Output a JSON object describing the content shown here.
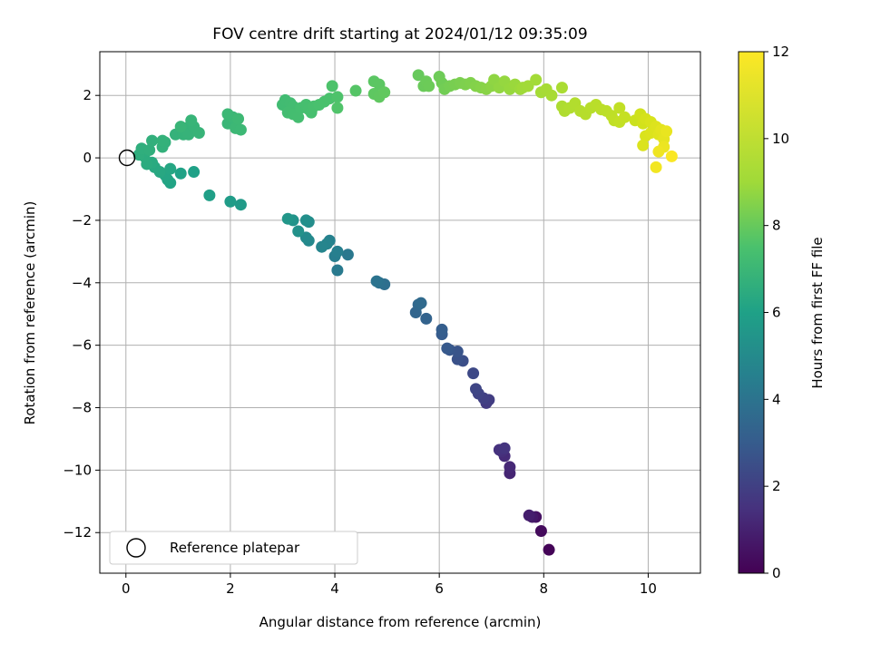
{
  "chart_data": {
    "type": "scatter",
    "title": "FOV centre drift starting at 2024/01/12 09:35:09",
    "xlabel": "Angular distance from reference (arcmin)",
    "ylabel": "Rotation from reference (arcmin)",
    "xlim": [
      -0.5,
      11.0
    ],
    "ylim": [
      -13.3,
      3.4
    ],
    "xticks": [
      "0",
      "2",
      "4",
      "6",
      "8",
      "10"
    ],
    "yticks": [
      "2",
      "0",
      "−2",
      "−4",
      "−6",
      "−8",
      "−10",
      "−12"
    ],
    "grid": true,
    "colormap": "viridis",
    "colorbar": {
      "label": "Hours from first FF file",
      "range": [
        0,
        12
      ],
      "ticks": [
        "0",
        "2",
        "4",
        "6",
        "8",
        "10",
        "12"
      ]
    },
    "legend": {
      "position": "lower-left",
      "label": "Reference platepar",
      "marker": {
        "x": 0,
        "y": 0
      }
    },
    "points": [
      [
        8.1,
        -12.55,
        0.1
      ],
      [
        7.95,
        -11.95,
        0.3
      ],
      [
        7.85,
        -11.5,
        0.5
      ],
      [
        7.78,
        -11.5,
        0.7
      ],
      [
        7.72,
        -11.45,
        0.9
      ],
      [
        7.35,
        -10.1,
        1.1
      ],
      [
        7.35,
        -9.9,
        1.2
      ],
      [
        7.25,
        -9.55,
        1.3
      ],
      [
        7.2,
        -9.4,
        1.4
      ],
      [
        7.15,
        -9.35,
        1.5
      ],
      [
        7.25,
        -9.3,
        1.6
      ],
      [
        6.9,
        -7.85,
        1.8
      ],
      [
        6.95,
        -7.75,
        1.9
      ],
      [
        6.85,
        -7.7,
        2.0
      ],
      [
        6.75,
        -7.55,
        2.1
      ],
      [
        6.7,
        -7.4,
        2.2
      ],
      [
        6.65,
        -6.9,
        2.3
      ],
      [
        6.45,
        -6.5,
        2.5
      ],
      [
        6.35,
        -6.45,
        2.6
      ],
      [
        6.35,
        -6.2,
        2.7
      ],
      [
        6.2,
        -6.15,
        2.8
      ],
      [
        6.15,
        -6.1,
        2.9
      ],
      [
        6.05,
        -5.65,
        3.0
      ],
      [
        6.05,
        -5.5,
        3.1
      ],
      [
        5.75,
        -5.15,
        3.3
      ],
      [
        5.55,
        -4.95,
        3.4
      ],
      [
        5.6,
        -4.7,
        3.5
      ],
      [
        5.65,
        -4.65,
        3.6
      ],
      [
        4.95,
        -4.05,
        3.8
      ],
      [
        4.85,
        -4.0,
        3.9
      ],
      [
        4.8,
        -3.95,
        4.0
      ],
      [
        4.25,
        -3.1,
        4.2
      ],
      [
        4.05,
        -3.6,
        4.3
      ],
      [
        4.0,
        -3.15,
        4.4
      ],
      [
        4.05,
        -3.0,
        4.5
      ],
      [
        3.9,
        -2.65,
        4.6
      ],
      [
        3.85,
        -2.75,
        4.7
      ],
      [
        3.75,
        -2.85,
        4.75
      ],
      [
        3.5,
        -2.65,
        4.9
      ],
      [
        3.45,
        -2.55,
        5.0
      ],
      [
        3.5,
        -2.05,
        5.1
      ],
      [
        3.45,
        -2.0,
        5.2
      ],
      [
        3.3,
        -2.35,
        5.3
      ],
      [
        3.2,
        -2.0,
        5.4
      ],
      [
        3.1,
        -1.95,
        5.5
      ],
      [
        2.2,
        -1.5,
        5.7
      ],
      [
        2.0,
        -1.4,
        5.8
      ],
      [
        1.6,
        -1.2,
        5.9
      ],
      [
        1.3,
        -0.45,
        6.0
      ],
      [
        1.05,
        -0.5,
        6.05
      ],
      [
        0.85,
        -0.8,
        6.1
      ],
      [
        0.8,
        -0.7,
        6.15
      ],
      [
        0.75,
        -0.55,
        6.2
      ],
      [
        0.85,
        -0.35,
        6.25
      ],
      [
        0.65,
        -0.45,
        6.3
      ],
      [
        0.55,
        -0.3,
        6.35
      ],
      [
        0.5,
        -0.15,
        6.4
      ],
      [
        0.4,
        -0.2,
        6.45
      ],
      [
        0.35,
        0.05,
        6.5
      ],
      [
        0.25,
        0.1,
        6.55
      ],
      [
        0.3,
        0.3,
        6.6
      ],
      [
        0.45,
        0.25,
        6.62
      ],
      [
        0.5,
        0.55,
        6.65
      ],
      [
        0.7,
        0.35,
        6.7
      ],
      [
        0.75,
        0.5,
        6.72
      ],
      [
        0.7,
        0.55,
        6.74
      ],
      [
        0.95,
        0.75,
        6.76
      ],
      [
        1.1,
        0.75,
        6.78
      ],
      [
        1.15,
        0.95,
        6.8
      ],
      [
        1.2,
        0.75,
        6.82
      ],
      [
        1.3,
        1.0,
        6.84
      ],
      [
        1.4,
        0.8,
        6.86
      ],
      [
        1.25,
        1.2,
        6.88
      ],
      [
        1.05,
        1.0,
        6.9
      ],
      [
        1.95,
        1.1,
        6.95
      ],
      [
        2.05,
        1.3,
        7.0
      ],
      [
        1.95,
        1.4,
        7.02
      ],
      [
        2.1,
        0.95,
        7.04
      ],
      [
        2.2,
        0.9,
        7.06
      ],
      [
        2.15,
        1.25,
        7.08
      ],
      [
        3.0,
        1.7,
        7.2
      ],
      [
        3.05,
        1.85,
        7.22
      ],
      [
        3.15,
        1.75,
        7.24
      ],
      [
        3.2,
        1.65,
        7.26
      ],
      [
        3.1,
        1.45,
        7.28
      ],
      [
        3.2,
        1.4,
        7.3
      ],
      [
        3.3,
        1.3,
        7.32
      ],
      [
        3.35,
        1.6,
        7.34
      ],
      [
        3.45,
        1.7,
        7.36
      ],
      [
        3.5,
        1.55,
        7.38
      ],
      [
        3.55,
        1.45,
        7.4
      ],
      [
        3.6,
        1.65,
        7.42
      ],
      [
        3.7,
        1.7,
        7.45
      ],
      [
        3.8,
        1.8,
        7.48
      ],
      [
        3.9,
        1.9,
        7.5
      ],
      [
        3.95,
        2.3,
        7.55
      ],
      [
        4.05,
        1.95,
        7.57
      ],
      [
        4.05,
        1.6,
        7.6
      ],
      [
        4.4,
        2.15,
        7.7
      ],
      [
        4.75,
        2.45,
        7.8
      ],
      [
        4.85,
        2.35,
        7.82
      ],
      [
        4.75,
        2.05,
        7.85
      ],
      [
        4.85,
        1.95,
        7.88
      ],
      [
        4.95,
        2.1,
        7.9
      ],
      [
        5.6,
        2.65,
        8.0
      ],
      [
        5.7,
        2.3,
        8.05
      ],
      [
        5.75,
        2.45,
        8.08
      ],
      [
        5.8,
        2.3,
        8.1
      ],
      [
        6.0,
        2.6,
        8.12
      ],
      [
        6.05,
        2.4,
        8.15
      ],
      [
        6.1,
        2.2,
        8.2
      ],
      [
        6.2,
        2.3,
        8.25
      ],
      [
        6.3,
        2.35,
        8.3
      ],
      [
        6.4,
        2.4,
        8.35
      ],
      [
        6.5,
        2.35,
        8.4
      ],
      [
        6.6,
        2.4,
        8.45
      ],
      [
        6.7,
        2.3,
        8.5
      ],
      [
        6.8,
        2.25,
        8.55
      ],
      [
        6.9,
        2.2,
        8.6
      ],
      [
        7.0,
        2.3,
        8.65
      ],
      [
        7.05,
        2.5,
        8.7
      ],
      [
        7.15,
        2.25,
        8.75
      ],
      [
        7.25,
        2.45,
        8.8
      ],
      [
        7.35,
        2.2,
        8.85
      ],
      [
        7.45,
        2.35,
        8.9
      ],
      [
        7.55,
        2.2,
        8.95
      ],
      [
        7.6,
        2.25,
        9.0
      ],
      [
        7.7,
        2.3,
        9.05
      ],
      [
        7.85,
        2.5,
        9.1
      ],
      [
        7.95,
        2.1,
        9.15
      ],
      [
        8.05,
        2.2,
        9.2
      ],
      [
        8.15,
        2.0,
        9.25
      ],
      [
        8.35,
        2.25,
        9.3
      ],
      [
        8.35,
        1.65,
        9.4
      ],
      [
        8.4,
        1.5,
        9.45
      ],
      [
        8.5,
        1.6,
        9.5
      ],
      [
        8.6,
        1.75,
        9.55
      ],
      [
        8.7,
        1.5,
        9.6
      ],
      [
        8.8,
        1.4,
        9.65
      ],
      [
        8.9,
        1.6,
        9.7
      ],
      [
        9.0,
        1.7,
        9.75
      ],
      [
        9.1,
        1.55,
        9.8
      ],
      [
        9.2,
        1.5,
        9.85
      ],
      [
        9.3,
        1.35,
        9.9
      ],
      [
        9.35,
        1.2,
        9.95
      ],
      [
        9.45,
        1.6,
        10.0
      ],
      [
        9.45,
        1.15,
        10.05
      ],
      [
        9.55,
        1.3,
        10.1
      ],
      [
        9.75,
        1.2,
        10.3
      ],
      [
        9.85,
        1.4,
        10.4
      ],
      [
        9.9,
        1.1,
        10.5
      ],
      [
        9.95,
        1.25,
        10.6
      ],
      [
        10.05,
        1.15,
        10.7
      ],
      [
        9.95,
        0.7,
        10.75
      ],
      [
        9.9,
        0.4,
        10.8
      ],
      [
        10.05,
        0.8,
        10.85
      ],
      [
        10.15,
        1.0,
        10.9
      ],
      [
        10.2,
        0.75,
        11.0
      ],
      [
        10.25,
        0.9,
        11.1
      ],
      [
        10.3,
        0.6,
        11.2
      ],
      [
        10.35,
        0.85,
        11.3
      ],
      [
        10.3,
        0.35,
        11.4
      ],
      [
        10.2,
        0.2,
        11.5
      ],
      [
        10.15,
        -0.3,
        11.6
      ],
      [
        10.45,
        0.05,
        11.9
      ]
    ]
  }
}
